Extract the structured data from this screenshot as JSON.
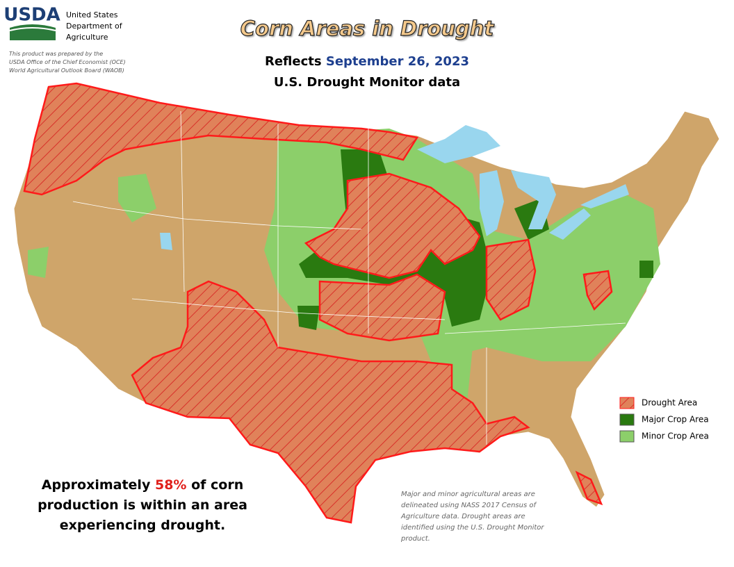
{
  "header": {
    "logo": "USDA",
    "agency": [
      "United States",
      "Department of",
      "Agriculture"
    ],
    "credit": [
      "This product was prepared by the",
      "USDA Office of the Chief Economist (OCE)",
      "World Agricultural Outlook Board (WAOB)"
    ]
  },
  "title": "Corn Areas in Drought",
  "subtitle": {
    "prefix": "Reflects",
    "date": "September 26, 2023",
    "source": "U.S. Drought Monitor data"
  },
  "legend": [
    "Drought Area",
    "Major Crop Area",
    "Minor Crop Area"
  ],
  "statement": {
    "before": "Approximately",
    "highlight": "58%",
    "after": "of corn",
    "line2": "production is within an area",
    "line3": "experiencing drought."
  },
  "footnote": [
    "Major and minor agricultural areas are",
    "delineated using NASS 2017 Census of",
    "Agriculture data.  Drought areas are",
    "identified using the U.S. Drought Monitor",
    "product."
  ]
}
